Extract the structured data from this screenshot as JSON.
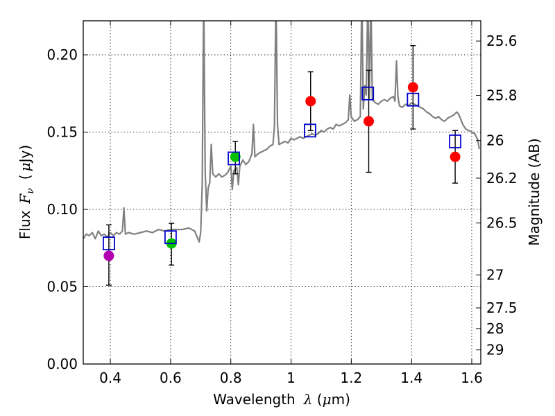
{
  "chart_data": {
    "type": "scatter",
    "xlabel": "Wavelength",
    "xlabel_symbol": "λ",
    "xlabel_units_open": " (",
    "xlabel_mu": "μ",
    "xlabel_units_close": "m)",
    "ylabel": "Flux",
    "ylabel_symbol": "F",
    "ylabel_subscript": "ν",
    "ylabel_units_open": "(",
    "ylabel_mu": "μ",
    "ylabel_units_close": "Jy)",
    "y2label": "Magnitude (AB)",
    "xlim": [
      0.31,
      1.63
    ],
    "ylim": [
      0.0,
      0.222
    ],
    "grid": true,
    "x_ticks": [
      {
        "value": 0.4,
        "label": "0.4"
      },
      {
        "value": 0.6,
        "label": "0.6"
      },
      {
        "value": 0.8,
        "label": "0.8"
      },
      {
        "value": 1.0,
        "label": "1"
      },
      {
        "value": 1.2,
        "label": "1.2"
      },
      {
        "value": 1.4,
        "label": "1.4"
      },
      {
        "value": 1.6,
        "label": "1.6"
      }
    ],
    "y_ticks": [
      {
        "value": 0.0,
        "label": "0.00"
      },
      {
        "value": 0.05,
        "label": "0.05"
      },
      {
        "value": 0.1,
        "label": "0.10"
      },
      {
        "value": 0.15,
        "label": "0.15"
      },
      {
        "value": 0.2,
        "label": "0.20"
      }
    ],
    "mag_ticks": [
      {
        "mag": 25.6,
        "label": "25.6"
      },
      {
        "mag": 25.8,
        "label": "25.8"
      },
      {
        "mag": 26.0,
        "label": "26"
      },
      {
        "mag": 26.2,
        "label": "26.2"
      },
      {
        "mag": 26.5,
        "label": "26.5"
      },
      {
        "mag": 27.0,
        "label": "27"
      },
      {
        "mag": 27.5,
        "label": "27.5"
      },
      {
        "mag": 28.0,
        "label": "28"
      },
      {
        "mag": 29.0,
        "label": "29"
      }
    ],
    "series": [
      {
        "name": "model spectrum",
        "kind": "line",
        "color": "#808080",
        "points": [
          [
            0.31,
            0.081
          ],
          [
            0.32,
            0.084
          ],
          [
            0.33,
            0.083
          ],
          [
            0.34,
            0.085
          ],
          [
            0.35,
            0.081
          ],
          [
            0.36,
            0.086
          ],
          [
            0.37,
            0.083
          ],
          [
            0.38,
            0.084
          ],
          [
            0.39,
            0.082
          ],
          [
            0.4,
            0.085
          ],
          [
            0.41,
            0.083
          ],
          [
            0.42,
            0.085
          ],
          [
            0.43,
            0.084
          ],
          [
            0.44,
            0.086
          ],
          [
            0.445,
            0.101
          ],
          [
            0.45,
            0.084
          ],
          [
            0.46,
            0.085
          ],
          [
            0.48,
            0.084
          ],
          [
            0.5,
            0.085
          ],
          [
            0.52,
            0.086
          ],
          [
            0.54,
            0.085
          ],
          [
            0.56,
            0.087
          ],
          [
            0.58,
            0.086
          ],
          [
            0.6,
            0.087
          ],
          [
            0.62,
            0.087
          ],
          [
            0.64,
            0.087
          ],
          [
            0.66,
            0.088
          ],
          [
            0.68,
            0.086
          ],
          [
            0.695,
            0.079
          ],
          [
            0.7,
            0.085
          ],
          [
            0.705,
            0.116
          ],
          [
            0.71,
            0.24
          ],
          [
            0.715,
            0.124
          ],
          [
            0.72,
            0.099
          ],
          [
            0.725,
            0.114
          ],
          [
            0.73,
            0.117
          ],
          [
            0.735,
            0.142
          ],
          [
            0.74,
            0.123
          ],
          [
            0.75,
            0.121
          ],
          [
            0.76,
            0.123
          ],
          [
            0.77,
            0.121
          ],
          [
            0.78,
            0.122
          ],
          [
            0.79,
            0.124
          ],
          [
            0.8,
            0.128
          ],
          [
            0.805,
            0.113
          ],
          [
            0.81,
            0.125
          ],
          [
            0.82,
            0.127
          ],
          [
            0.825,
            0.116
          ],
          [
            0.83,
            0.128
          ],
          [
            0.84,
            0.132
          ],
          [
            0.85,
            0.129
          ],
          [
            0.86,
            0.131
          ],
          [
            0.87,
            0.136
          ],
          [
            0.875,
            0.155
          ],
          [
            0.88,
            0.134
          ],
          [
            0.89,
            0.136
          ],
          [
            0.9,
            0.137
          ],
          [
            0.91,
            0.138
          ],
          [
            0.92,
            0.139
          ],
          [
            0.93,
            0.141
          ],
          [
            0.94,
            0.142
          ],
          [
            0.945,
            0.154
          ],
          [
            0.95,
            0.24
          ],
          [
            0.955,
            0.155
          ],
          [
            0.96,
            0.142
          ],
          [
            0.97,
            0.143
          ],
          [
            0.98,
            0.144
          ],
          [
            0.99,
            0.143
          ],
          [
            1.0,
            0.146
          ],
          [
            1.01,
            0.145
          ],
          [
            1.02,
            0.146
          ],
          [
            1.03,
            0.147
          ],
          [
            1.04,
            0.146
          ],
          [
            1.05,
            0.147
          ],
          [
            1.06,
            0.148
          ],
          [
            1.07,
            0.149
          ],
          [
            1.08,
            0.148
          ],
          [
            1.09,
            0.149
          ],
          [
            1.1,
            0.151
          ],
          [
            1.11,
            0.15
          ],
          [
            1.12,
            0.152
          ],
          [
            1.13,
            0.153
          ],
          [
            1.14,
            0.152
          ],
          [
            1.15,
            0.155
          ],
          [
            1.16,
            0.154
          ],
          [
            1.17,
            0.155
          ],
          [
            1.18,
            0.156
          ],
          [
            1.19,
            0.158
          ],
          [
            1.195,
            0.174
          ],
          [
            1.2,
            0.16
          ],
          [
            1.21,
            0.157
          ],
          [
            1.22,
            0.158
          ],
          [
            1.23,
            0.16
          ],
          [
            1.235,
            0.24
          ],
          [
            1.24,
            0.165
          ],
          [
            1.245,
            0.18
          ],
          [
            1.25,
            0.174
          ],
          [
            1.255,
            0.24
          ],
          [
            1.26,
            0.172
          ],
          [
            1.265,
            0.24
          ],
          [
            1.27,
            0.171
          ],
          [
            1.28,
            0.169
          ],
          [
            1.29,
            0.168
          ],
          [
            1.3,
            0.17
          ],
          [
            1.31,
            0.171
          ],
          [
            1.32,
            0.17
          ],
          [
            1.33,
            0.172
          ],
          [
            1.34,
            0.173
          ],
          [
            1.345,
            0.17
          ],
          [
            1.35,
            0.196
          ],
          [
            1.355,
            0.173
          ],
          [
            1.36,
            0.167
          ],
          [
            1.37,
            0.166
          ],
          [
            1.38,
            0.168
          ],
          [
            1.39,
            0.167
          ],
          [
            1.4,
            0.169
          ],
          [
            1.41,
            0.168
          ],
          [
            1.42,
            0.167
          ],
          [
            1.43,
            0.166
          ],
          [
            1.44,
            0.165
          ],
          [
            1.45,
            0.163
          ],
          [
            1.46,
            0.162
          ],
          [
            1.47,
            0.16
          ],
          [
            1.48,
            0.159
          ],
          [
            1.49,
            0.16
          ],
          [
            1.5,
            0.158
          ],
          [
            1.51,
            0.157
          ],
          [
            1.52,
            0.159
          ],
          [
            1.53,
            0.16
          ],
          [
            1.54,
            0.161
          ],
          [
            1.55,
            0.163
          ],
          [
            1.555,
            0.162
          ],
          [
            1.56,
            0.16
          ],
          [
            1.57,
            0.155
          ],
          [
            1.58,
            0.152
          ],
          [
            1.59,
            0.151
          ],
          [
            1.6,
            0.15
          ],
          [
            1.61,
            0.149
          ],
          [
            1.62,
            0.145
          ],
          [
            1.625,
            0.139
          ]
        ]
      },
      {
        "name": "model fluxes",
        "kind": "square",
        "color": "#0000cc",
        "points": [
          [
            0.395,
            0.078
          ],
          [
            0.6,
            0.082
          ],
          [
            0.81,
            0.133
          ],
          [
            1.063,
            0.151
          ],
          [
            1.255,
            0.175
          ],
          [
            1.405,
            0.171
          ],
          [
            1.545,
            0.144
          ]
        ]
      },
      {
        "name": "detection",
        "kind": "circle",
        "color": "#ff0000",
        "points": [
          [
            1.065,
            0.17
          ],
          [
            1.258,
            0.157
          ],
          [
            1.405,
            0.179
          ],
          [
            1.545,
            0.134
          ]
        ]
      },
      {
        "name": "green detection",
        "kind": "circle",
        "color": "#00c000",
        "points": [
          [
            0.603,
            0.078
          ],
          [
            0.815,
            0.134
          ]
        ]
      },
      {
        "name": "magenta detection",
        "kind": "circle",
        "color": "#b000b0",
        "points": [
          [
            0.395,
            0.07
          ]
        ]
      }
    ],
    "error_bars": [
      {
        "x": 0.395,
        "low": 0.051,
        "high": 0.09
      },
      {
        "x": 0.603,
        "low": 0.064,
        "high": 0.091
      },
      {
        "x": 0.815,
        "low": 0.123,
        "high": 0.144
      },
      {
        "x": 1.065,
        "low": 0.151,
        "high": 0.189
      },
      {
        "x": 1.258,
        "low": 0.124,
        "high": 0.19
      },
      {
        "x": 1.405,
        "low": 0.152,
        "high": 0.206
      },
      {
        "x": 1.545,
        "low": 0.117,
        "high": 0.151
      }
    ]
  }
}
